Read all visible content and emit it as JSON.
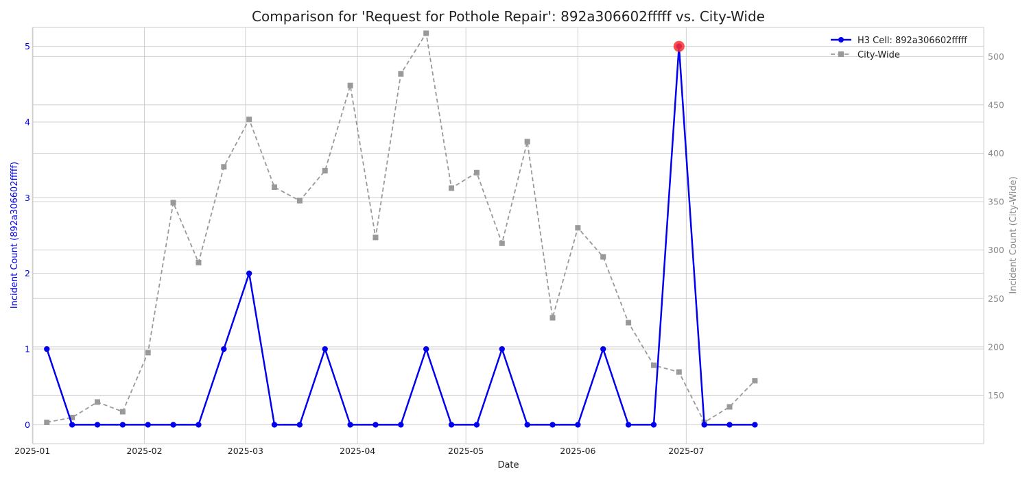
{
  "chart_data": {
    "type": "line",
    "title": "Comparison for 'Request for Pothole Repair': 892a306602fffff vs. City-Wide",
    "xlabel": "Date",
    "ylabel_left": "Incident Count (892a306602fffff)",
    "ylabel_right": "Incident Count (City-Wide)",
    "x_ticks": [
      "2025-01",
      "2025-02",
      "2025-03",
      "2025-04",
      "2025-05",
      "2025-06",
      "2025-07"
    ],
    "y_left_ticks": [
      0,
      1,
      2,
      3,
      4,
      5
    ],
    "y_left_lim": [
      -0.25,
      5.25
    ],
    "y_right_ticks": [
      150,
      200,
      250,
      300,
      350,
      400,
      450,
      500
    ],
    "y_right_lim": [
      100,
      530
    ],
    "x": [
      "2025-01-05",
      "2025-01-12",
      "2025-01-19",
      "2025-01-26",
      "2025-02-02",
      "2025-02-09",
      "2025-02-16",
      "2025-02-23",
      "2025-03-02",
      "2025-03-09",
      "2025-03-16",
      "2025-03-23",
      "2025-03-30",
      "2025-04-06",
      "2025-04-13",
      "2025-04-20",
      "2025-04-27",
      "2025-05-04",
      "2025-05-11",
      "2025-05-18",
      "2025-05-25",
      "2025-06-01",
      "2025-06-08",
      "2025-06-15",
      "2025-06-22",
      "2025-06-29",
      "2025-07-06",
      "2025-07-13",
      "2025-07-20"
    ],
    "series": [
      {
        "name": "H3 Cell: 892a306602fffff",
        "axis": "left",
        "color": "#0000ee",
        "style": "solid",
        "marker": "circle",
        "values": [
          1,
          0,
          0,
          0,
          0,
          0,
          0,
          1,
          2,
          0,
          0,
          1,
          0,
          0,
          0,
          1,
          0,
          0,
          1,
          0,
          0,
          0,
          1,
          0,
          0,
          5,
          0,
          0,
          0
        ]
      },
      {
        "name": "City-Wide",
        "axis": "right",
        "color": "#999999",
        "style": "dashed",
        "marker": "square",
        "values": [
          122,
          127,
          143,
          133,
          194,
          349,
          287,
          386,
          435,
          365,
          351,
          382,
          470,
          313,
          482,
          524,
          364,
          380,
          307,
          412,
          230,
          323,
          293,
          225,
          181,
          174,
          122,
          138,
          165
        ]
      }
    ],
    "highlight": {
      "x": "2025-06-29",
      "series": "H3 Cell: 892a306602fffff",
      "value": 5,
      "color": "#ff2d2d"
    },
    "legend_position": "top-right",
    "grid": true
  }
}
